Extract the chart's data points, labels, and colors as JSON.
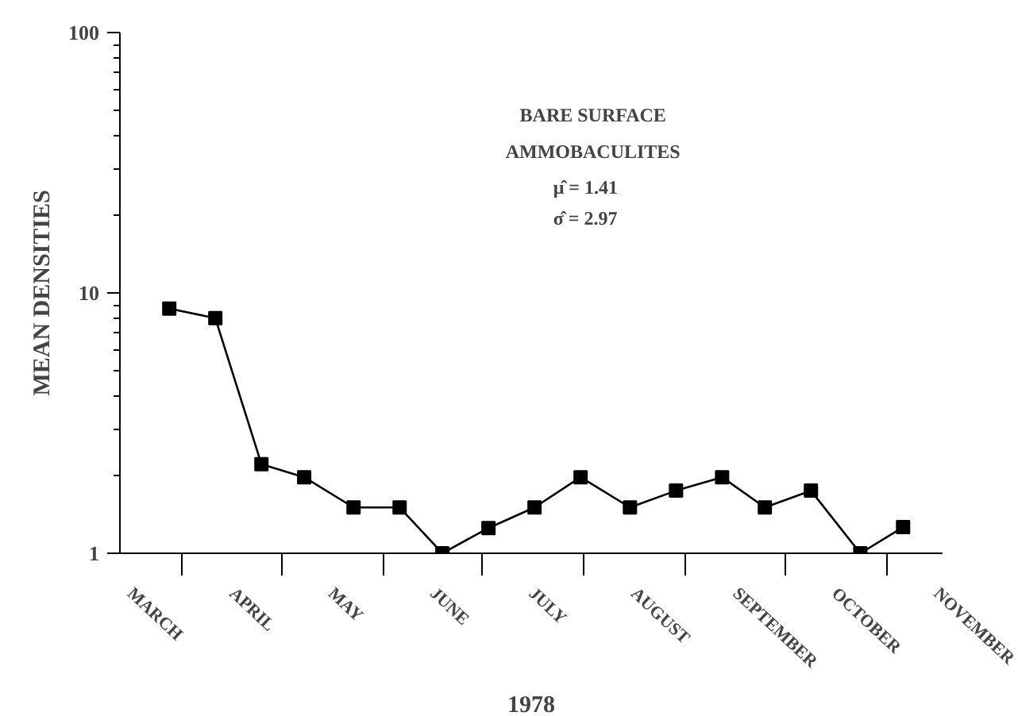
{
  "chart_data": {
    "type": "line",
    "xlabel": "1978",
    "ylabel": "MEAN DENSITIES",
    "annotations": [
      "BARE SURFACE",
      "AMMOBACULITES",
      "μ̂ = 1.41",
      "σ̂ = 2.97"
    ],
    "x": [
      "1978-03-28",
      "1978-04-11",
      "1978-04-25",
      "1978-05-08",
      "1978-05-23",
      "1978-06-06",
      "1978-06-19",
      "1978-07-03",
      "1978-07-17",
      "1978-07-31",
      "1978-08-15",
      "1978-08-29",
      "1978-09-12",
      "1978-09-25",
      "1978-10-09",
      "1978-10-24",
      "1978-11-06"
    ],
    "series": [
      {
        "color": "#000000",
        "values": [
          8.7,
          8.0,
          2.2,
          1.96,
          1.5,
          1.5,
          1.0,
          1.25,
          1.5,
          1.96,
          1.5,
          1.74,
          1.96,
          1.5,
          1.74,
          1.0,
          1.26
        ]
      }
    ],
    "xlim": [
      "1978-03-13",
      "1978-11-18"
    ],
    "xticks": [
      {
        "value": "1978-03-16",
        "label": "MARCH"
      },
      {
        "value": "1978-04-01",
        "label": null
      },
      {
        "value": "1978-04-16",
        "label": "APRIL"
      },
      {
        "value": "1978-05-01",
        "label": null
      },
      {
        "value": "1978-05-16",
        "label": "MAY"
      },
      {
        "value": "1978-06-01",
        "label": null
      },
      {
        "value": "1978-06-16",
        "label": "JUNE"
      },
      {
        "value": "1978-07-01",
        "label": null
      },
      {
        "value": "1978-07-16",
        "label": "JULY"
      },
      {
        "value": "1978-08-01",
        "label": null
      },
      {
        "value": "1978-08-16",
        "label": "AUGUST"
      },
      {
        "value": "1978-09-01",
        "label": null
      },
      {
        "value": "1978-09-16",
        "label": "SEPTEMBER"
      },
      {
        "value": "1978-10-01",
        "label": null
      },
      {
        "value": "1978-10-16",
        "label": "OCTOBER"
      },
      {
        "value": "1978-11-01",
        "label": null
      },
      {
        "value": "1978-11-16",
        "label": "NOVEMBER"
      }
    ],
    "ylim": [
      1,
      100
    ],
    "yticks": [
      1,
      {
        "value": 2,
        "label": null
      },
      {
        "value": 3,
        "label": null
      },
      {
        "value": 4,
        "label": null
      },
      {
        "value": 5,
        "label": null
      },
      {
        "value": 6,
        "label": null
      },
      {
        "value": 7,
        "label": null
      },
      {
        "value": 8,
        "label": null
      },
      {
        "value": 9,
        "label": null
      },
      10,
      {
        "value": 20,
        "label": null
      },
      {
        "value": 30,
        "label": null
      },
      {
        "value": 40,
        "label": null
      },
      {
        "value": 50,
        "label": null
      },
      {
        "value": 60,
        "label": null
      },
      {
        "value": 70,
        "label": null
      },
      {
        "value": 80,
        "label": null
      },
      {
        "value": 90,
        "label": null
      },
      100
    ],
    "log": "y",
    "grid": false,
    "marker": "square",
    "line_style": "solid"
  }
}
